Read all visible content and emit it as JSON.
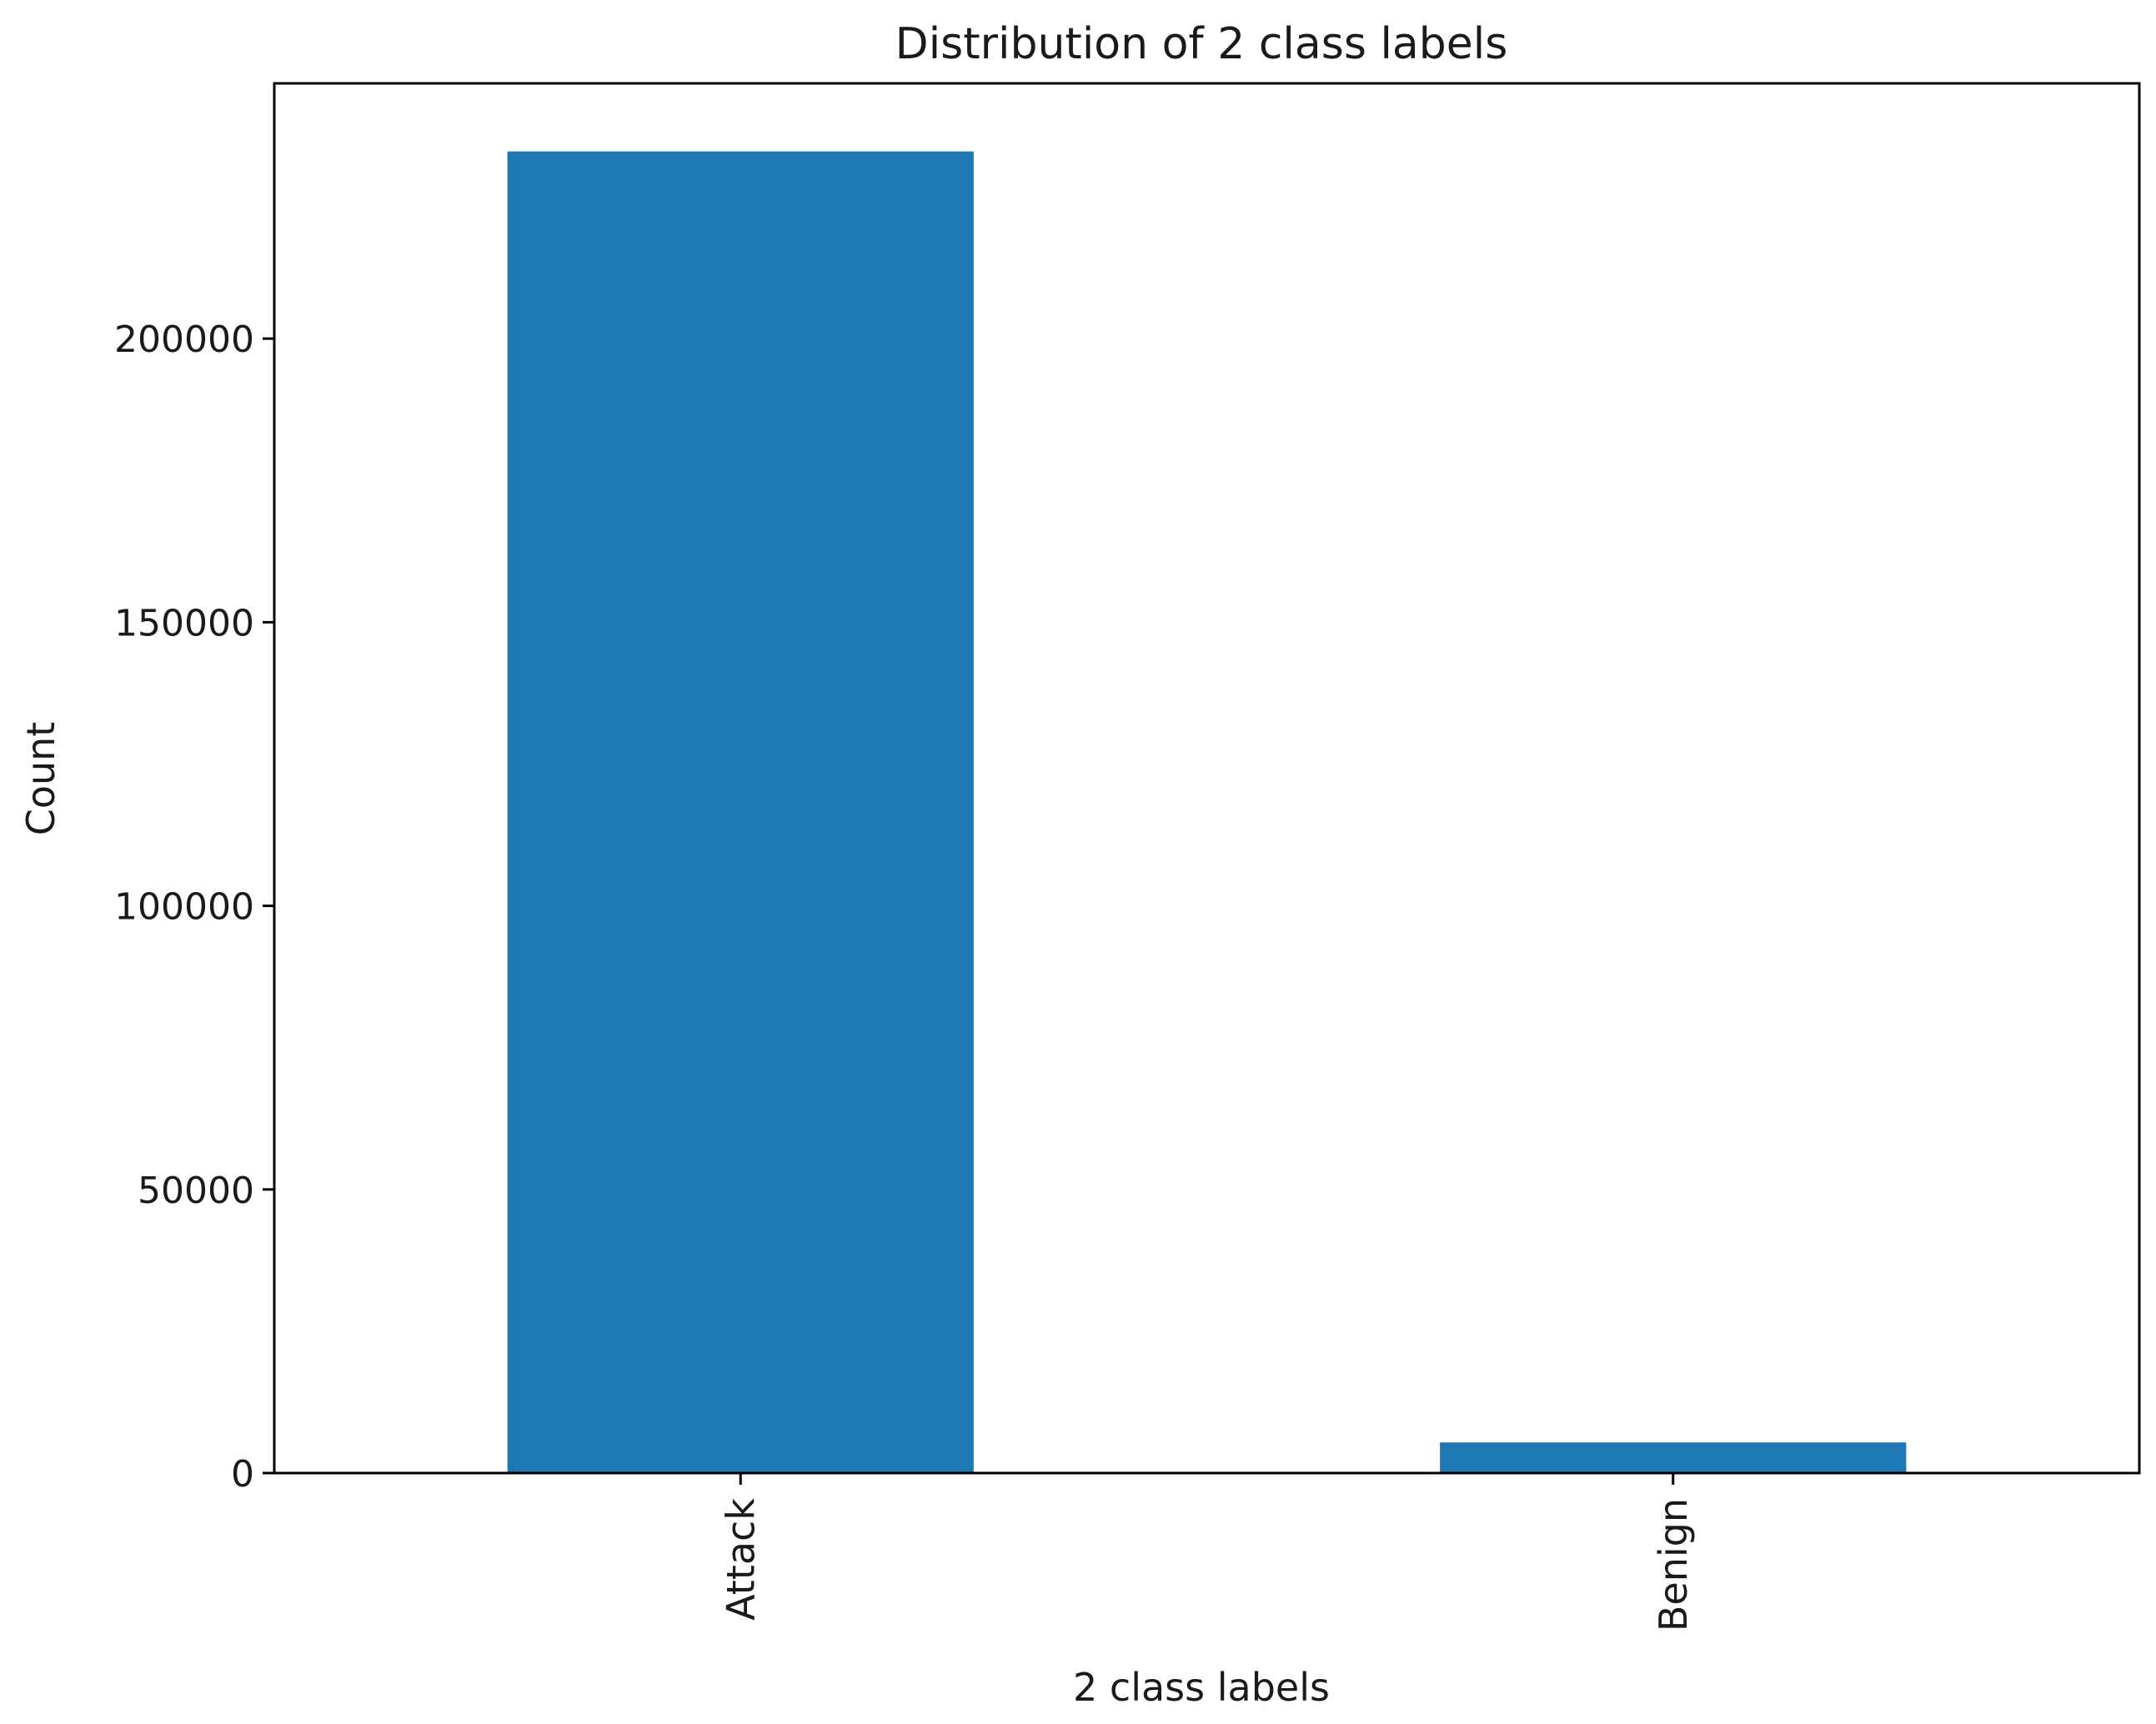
{
  "chart_data": {
    "type": "bar",
    "title": "Distribution of 2 class labels",
    "xlabel": "2 class labels",
    "ylabel": "Count",
    "categories": [
      "Attack",
      "Benign"
    ],
    "values": [
      233000,
      5400
    ],
    "ylim": [
      0,
      245000
    ],
    "yticks": [
      0,
      50000,
      100000,
      150000,
      200000
    ],
    "bar_color": "#1f77b4",
    "grid": false,
    "legend": "none"
  }
}
